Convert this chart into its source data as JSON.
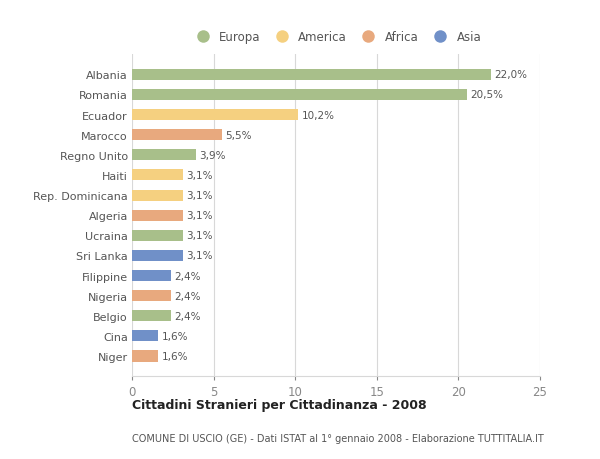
{
  "categories": [
    "Niger",
    "Cina",
    "Belgio",
    "Nigeria",
    "Filippine",
    "Sri Lanka",
    "Ucraina",
    "Algeria",
    "Rep. Dominicana",
    "Haiti",
    "Regno Unito",
    "Marocco",
    "Ecuador",
    "Romania",
    "Albania"
  ],
  "values": [
    1.6,
    1.6,
    2.4,
    2.4,
    2.4,
    3.1,
    3.1,
    3.1,
    3.1,
    3.1,
    3.9,
    5.5,
    10.2,
    20.5,
    22.0
  ],
  "labels": [
    "1,6%",
    "1,6%",
    "2,4%",
    "2,4%",
    "2,4%",
    "3,1%",
    "3,1%",
    "3,1%",
    "3,1%",
    "3,1%",
    "3,9%",
    "5,5%",
    "10,2%",
    "20,5%",
    "22,0%"
  ],
  "colors": [
    "#e8a97e",
    "#7090c8",
    "#a8bf8a",
    "#e8a97e",
    "#7090c8",
    "#7090c8",
    "#a8bf8a",
    "#e8a97e",
    "#f5d080",
    "#f5d080",
    "#a8bf8a",
    "#e8a97e",
    "#f5d080",
    "#a8bf8a",
    "#a8bf8a"
  ],
  "continent_colors": {
    "Europa": "#a8bf8a",
    "America": "#f5d080",
    "Africa": "#e8a97e",
    "Asia": "#7090c8"
  },
  "xlim": [
    0,
    25
  ],
  "xticks": [
    0,
    5,
    10,
    15,
    20,
    25
  ],
  "title": "Cittadini Stranieri per Cittadinanza - 2008",
  "subtitle": "COMUNE DI USCIO (GE) - Dati ISTAT al 1° gennaio 2008 - Elaborazione TUTTITALIA.IT",
  "background_color": "#ffffff",
  "grid_color": "#d8d8d8",
  "bar_height": 0.55
}
